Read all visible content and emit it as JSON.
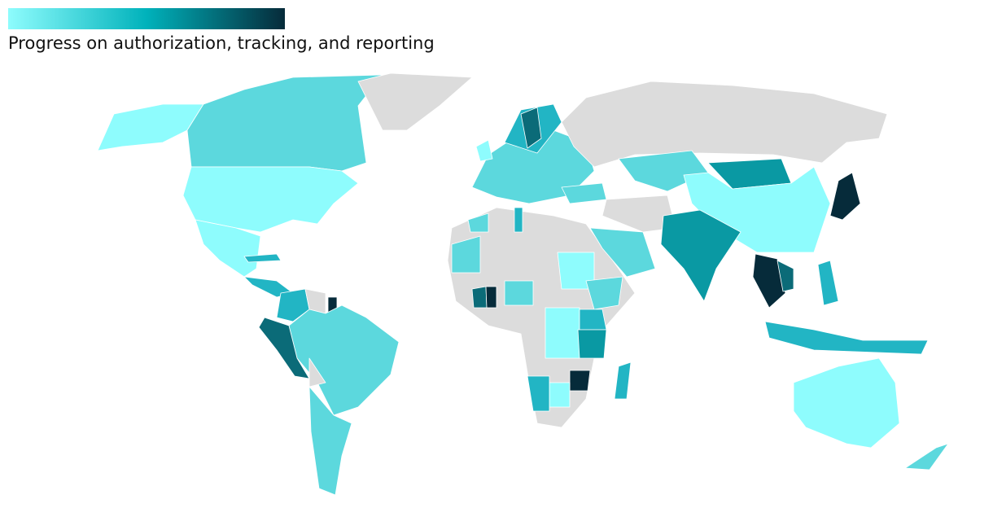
{
  "title": "Progress on authorization, tracking, and reporting",
  "legend": {
    "colors": [
      "#8efcfd",
      "#00b2bb",
      "#062b3a"
    ]
  }
}
